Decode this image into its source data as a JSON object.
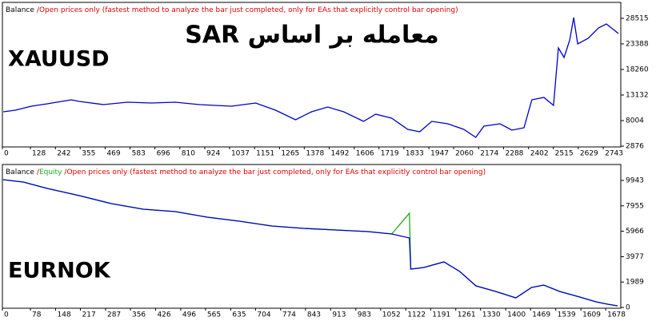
{
  "chart_data": [
    {
      "type": "line",
      "mode_separator": "/",
      "mode_note": "Open prices only (fastest method to analyze the bar just completed, only for EAs that explicitly control bar opening)",
      "annotations": [
        {
          "text": "معامله بر اساس SAR",
          "color": "#1a23a8"
        },
        {
          "text": "XAUUSD",
          "color": "#6aa624"
        }
      ],
      "x": [
        4,
        59,
        132,
        205,
        314,
        351,
        461,
        570,
        680,
        790,
        900,
        1046,
        1156,
        1247,
        1338,
        1411,
        1485,
        1558,
        1649,
        1704,
        1777,
        1850,
        1905,
        1960,
        2033,
        2106,
        2161,
        2198,
        2271,
        2326,
        2381,
        2417,
        2472,
        2516,
        2538,
        2564,
        2590,
        2608,
        2626,
        2674,
        2721,
        2757,
        2794,
        2812
      ],
      "series": [
        {
          "name": "Balance",
          "color": "#0000c8",
          "values": [
            9765,
            10085,
            10886,
            11367,
            12168,
            11847,
            11206,
            11687,
            11527,
            11687,
            11206,
            10886,
            11527,
            10085,
            8163,
            9765,
            10726,
            9765,
            7842,
            9284,
            8483,
            6240,
            5760,
            7842,
            7362,
            6240,
            4638,
            6881,
            7362,
            6080,
            6561,
            12168,
            12649,
            11046,
            22581,
            20659,
            24183,
            28668,
            23382,
            24503,
            26586,
            27387,
            26106,
            25465
          ]
        }
      ],
      "xlim": [
        0,
        2823
      ],
      "ylim": [
        2716,
        31230
      ],
      "xticks": [
        0,
        128,
        242,
        355,
        469,
        583,
        696,
        810,
        924,
        1037,
        1151,
        1265,
        1378,
        1492,
        1606,
        1719,
        1833,
        1947,
        2060,
        2174,
        2288,
        2402,
        2515,
        2629,
        2743
      ],
      "yticks": [
        2876,
        8004,
        13132,
        18260,
        23388,
        28515
      ]
    },
    {
      "type": "line",
      "mode_separator": "/",
      "mode_note": "Open prices only (fastest method to analyze the bar just completed, only for EAs that explicitly control bar opening)",
      "annotations": [
        {
          "text": "EURNOK",
          "color": "#b8561a"
        }
      ],
      "x": [
        2,
        58,
        125,
        214,
        303,
        392,
        481,
        570,
        659,
        749,
        838,
        927,
        1016,
        1083,
        1132,
        1136,
        1172,
        1228,
        1272,
        1317,
        1372,
        1428,
        1472,
        1506,
        1550,
        1606,
        1651,
        1684,
        1711
      ],
      "series": [
        {
          "name": "Equity",
          "color": "#1fa81f",
          "values": [
            10000,
            9813,
            9313,
            8750,
            8125,
            7688,
            7500,
            7063,
            6750,
            6375,
            6188,
            6063,
            5938,
            5750,
            7375,
            3000,
            3125,
            3563,
            2813,
            1688,
            1250,
            750,
            1563,
            1750,
            1250,
            813,
            438,
            250,
            125
          ]
        },
        {
          "name": "Balance",
          "color": "#0000c8",
          "values": [
            10000,
            9813,
            9313,
            8750,
            8125,
            7688,
            7500,
            7063,
            6750,
            6375,
            6188,
            6063,
            5938,
            5750,
            5438,
            3000,
            3125,
            3563,
            2813,
            1688,
            1250,
            750,
            1563,
            1750,
            1250,
            813,
            438,
            250,
            125
          ]
        }
      ],
      "xlim": [
        0,
        1720
      ],
      "ylim": [
        -60,
        10190
      ],
      "xticks": [
        0,
        78,
        148,
        217,
        287,
        356,
        426,
        496,
        565,
        635,
        704,
        774,
        843,
        913,
        983,
        1052,
        1122,
        1191,
        1261,
        1330,
        1400,
        1469,
        1539,
        1609,
        1678
      ],
      "yticks": [
        0,
        1989,
        3977,
        5966,
        7955,
        9943
      ]
    }
  ]
}
